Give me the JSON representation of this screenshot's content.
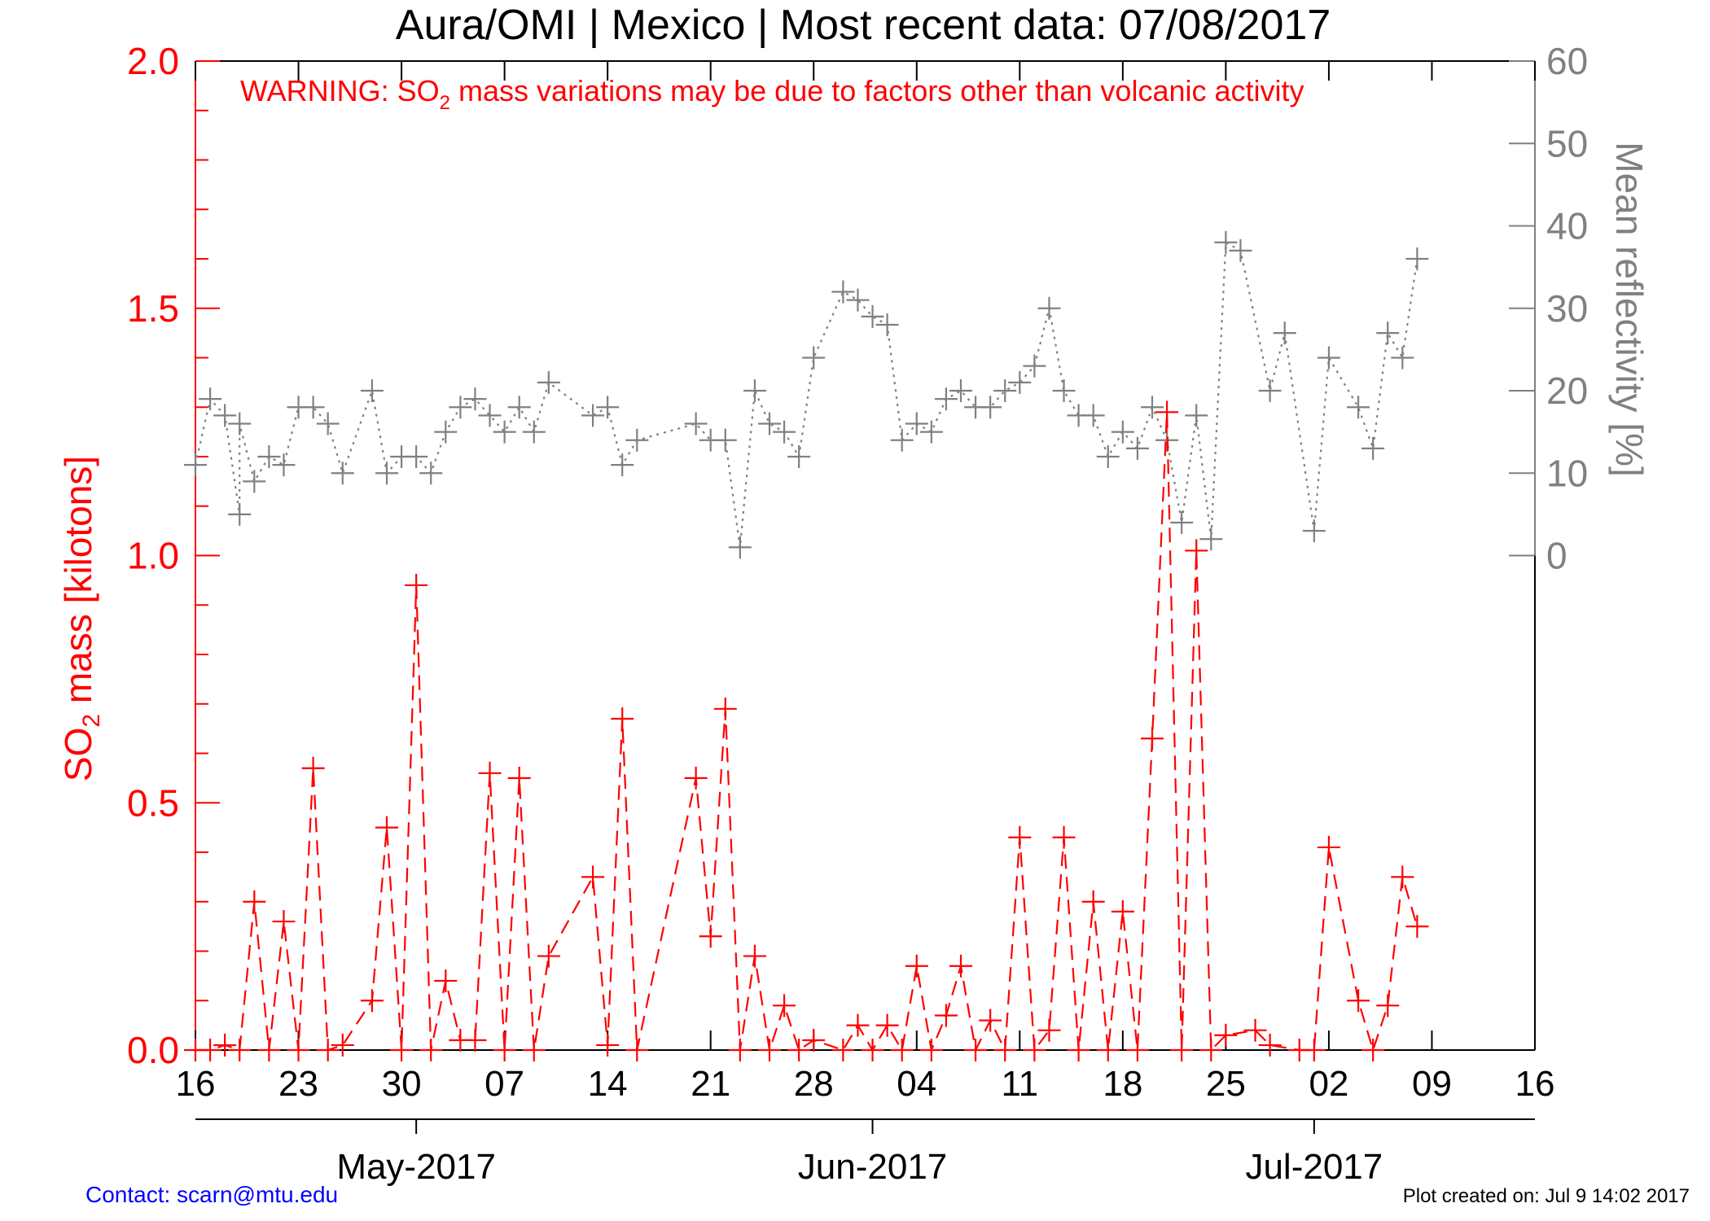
{
  "title": "Aura/OMI | Mexico | Most recent data: 07/08/2017",
  "warning": {
    "prefix": "WARNING: SO",
    "subscript": "2",
    "suffix": " mass variations may be due to factors other than volcanic activity"
  },
  "contact": "Contact: scarn@mtu.edu",
  "created": "Plot created on: Jul  9 14:02 2017",
  "colors": {
    "so2": "#ff0000",
    "reflectivity": "#808080",
    "contact": "#0000ff",
    "text": "#000000"
  },
  "chart_data": {
    "type": "line",
    "x_axis": {
      "type": "date",
      "range": [
        "2017-04-16",
        "2017-07-16"
      ],
      "day_ticks": [
        {
          "date": "2017-04-16",
          "label": "16"
        },
        {
          "date": "2017-04-23",
          "label": "23"
        },
        {
          "date": "2017-04-30",
          "label": "30"
        },
        {
          "date": "2017-05-07",
          "label": "07"
        },
        {
          "date": "2017-05-14",
          "label": "14"
        },
        {
          "date": "2017-05-21",
          "label": "21"
        },
        {
          "date": "2017-05-28",
          "label": "28"
        },
        {
          "date": "2017-06-04",
          "label": "04"
        },
        {
          "date": "2017-06-11",
          "label": "11"
        },
        {
          "date": "2017-06-18",
          "label": "18"
        },
        {
          "date": "2017-06-25",
          "label": "25"
        },
        {
          "date": "2017-07-02",
          "label": "02"
        },
        {
          "date": "2017-07-09",
          "label": "09"
        },
        {
          "date": "2017-07-16",
          "label": "16"
        }
      ],
      "month_ticks": [
        {
          "date": "2017-05-01",
          "label": "May-2017"
        },
        {
          "date": "2017-06-01",
          "label": "Jun-2017"
        },
        {
          "date": "2017-07-01",
          "label": "Jul-2017"
        }
      ]
    },
    "y_left": {
      "label_prefix": "SO",
      "label_subscript": "2",
      "label_suffix": " mass [kilotons]",
      "range": [
        0.0,
        2.0
      ],
      "ticks": [
        "0.0",
        "0.5",
        "1.0",
        "1.5",
        "2.0"
      ]
    },
    "y_right": {
      "label": "Mean reflectivity [%]",
      "range": [
        -60,
        60
      ],
      "ticks": [
        "0",
        "10",
        "20",
        "30",
        "40",
        "50",
        "60"
      ]
    },
    "series": [
      {
        "key": "so2",
        "axis": "left",
        "line": "dashed",
        "points": [
          [
            "2017-04-16",
            0.0
          ],
          [
            "2017-04-17",
            0.0
          ],
          [
            "2017-04-18",
            0.01
          ],
          [
            "2017-04-19",
            0.0
          ],
          [
            "2017-04-20",
            0.3
          ],
          [
            "2017-04-21",
            0.0
          ],
          [
            "2017-04-22",
            0.26
          ],
          [
            "2017-04-23",
            0.0
          ],
          [
            "2017-04-24",
            0.57
          ],
          [
            "2017-04-25",
            0.0
          ],
          [
            "2017-04-26",
            0.01
          ],
          [
            "2017-04-28",
            0.1
          ],
          [
            "2017-04-29",
            0.45
          ],
          [
            "2017-04-30",
            0.0
          ],
          [
            "2017-05-01",
            0.94
          ],
          [
            "2017-05-02",
            0.0
          ],
          [
            "2017-05-03",
            0.14
          ],
          [
            "2017-05-04",
            0.02
          ],
          [
            "2017-05-05",
            0.02
          ],
          [
            "2017-05-06",
            0.56
          ],
          [
            "2017-05-07",
            0.0
          ],
          [
            "2017-05-08",
            0.55
          ],
          [
            "2017-05-09",
            0.0
          ],
          [
            "2017-05-10",
            0.19
          ],
          [
            "2017-05-13",
            0.35
          ],
          [
            "2017-05-14",
            0.01
          ],
          [
            "2017-05-15",
            0.67
          ],
          [
            "2017-05-16",
            0.0
          ],
          [
            "2017-05-20",
            0.55
          ],
          [
            "2017-05-21",
            0.23
          ],
          [
            "2017-05-22",
            0.69
          ],
          [
            "2017-05-23",
            0.0
          ],
          [
            "2017-05-24",
            0.19
          ],
          [
            "2017-05-25",
            0.0
          ],
          [
            "2017-05-26",
            0.09
          ],
          [
            "2017-05-27",
            0.0
          ],
          [
            "2017-05-28",
            0.02
          ],
          [
            "2017-05-30",
            0.0
          ],
          [
            "2017-05-31",
            0.05
          ],
          [
            "2017-06-01",
            0.0
          ],
          [
            "2017-06-02",
            0.05
          ],
          [
            "2017-06-03",
            0.0
          ],
          [
            "2017-06-04",
            0.17
          ],
          [
            "2017-06-05",
            0.0
          ],
          [
            "2017-06-06",
            0.07
          ],
          [
            "2017-06-07",
            0.17
          ],
          [
            "2017-06-08",
            0.0
          ],
          [
            "2017-06-09",
            0.06
          ],
          [
            "2017-06-10",
            0.0
          ],
          [
            "2017-06-11",
            0.43
          ],
          [
            "2017-06-12",
            0.0
          ],
          [
            "2017-06-13",
            0.04
          ],
          [
            "2017-06-14",
            0.43
          ],
          [
            "2017-06-15",
            0.0
          ],
          [
            "2017-06-16",
            0.3
          ],
          [
            "2017-06-17",
            0.0
          ],
          [
            "2017-06-18",
            0.28
          ],
          [
            "2017-06-19",
            0.0
          ],
          [
            "2017-06-20",
            0.63
          ],
          [
            "2017-06-21",
            1.29
          ],
          [
            "2017-06-22",
            0.0
          ],
          [
            "2017-06-23",
            1.01
          ],
          [
            "2017-06-24",
            0.0
          ],
          [
            "2017-06-25",
            0.03
          ],
          [
            "2017-06-27",
            0.04
          ],
          [
            "2017-06-28",
            0.01
          ],
          [
            "2017-06-30",
            0.0
          ],
          [
            "2017-07-01",
            0.0
          ],
          [
            "2017-07-02",
            0.41
          ],
          [
            "2017-07-04",
            0.1
          ],
          [
            "2017-07-05",
            0.0
          ],
          [
            "2017-07-06",
            0.09
          ],
          [
            "2017-07-07",
            0.35
          ],
          [
            "2017-07-08",
            0.25
          ]
        ]
      },
      {
        "key": "reflectivity",
        "axis": "right",
        "line": "dotted",
        "points": [
          [
            "2017-04-16",
            11
          ],
          [
            "2017-04-17",
            19
          ],
          [
            "2017-04-18",
            17
          ],
          [
            "2017-04-19",
            5
          ],
          [
            "2017-04-19",
            16
          ],
          [
            "2017-04-20",
            9
          ],
          [
            "2017-04-21",
            12
          ],
          [
            "2017-04-22",
            11
          ],
          [
            "2017-04-23",
            18
          ],
          [
            "2017-04-24",
            18
          ],
          [
            "2017-04-25",
            16
          ],
          [
            "2017-04-26",
            10
          ],
          [
            "2017-04-28",
            20
          ],
          [
            "2017-04-29",
            10
          ],
          [
            "2017-04-30",
            12
          ],
          [
            "2017-05-01",
            12
          ],
          [
            "2017-05-02",
            10
          ],
          [
            "2017-05-03",
            15
          ],
          [
            "2017-05-04",
            18
          ],
          [
            "2017-05-05",
            19
          ],
          [
            "2017-05-06",
            17
          ],
          [
            "2017-05-07",
            15
          ],
          [
            "2017-05-08",
            18
          ],
          [
            "2017-05-09",
            15
          ],
          [
            "2017-05-10",
            21
          ],
          [
            "2017-05-13",
            17
          ],
          [
            "2017-05-14",
            18
          ],
          [
            "2017-05-15",
            11
          ],
          [
            "2017-05-16",
            14
          ],
          [
            "2017-05-20",
            16
          ],
          [
            "2017-05-21",
            14
          ],
          [
            "2017-05-22",
            14
          ],
          [
            "2017-05-23",
            1
          ],
          [
            "2017-05-24",
            20
          ],
          [
            "2017-05-25",
            16
          ],
          [
            "2017-05-26",
            15
          ],
          [
            "2017-05-27",
            12
          ],
          [
            "2017-05-28",
            24
          ],
          [
            "2017-05-30",
            32
          ],
          [
            "2017-05-31",
            31
          ],
          [
            "2017-06-01",
            29
          ],
          [
            "2017-06-02",
            28
          ],
          [
            "2017-06-03",
            14
          ],
          [
            "2017-06-04",
            16
          ],
          [
            "2017-06-05",
            15
          ],
          [
            "2017-06-06",
            19
          ],
          [
            "2017-06-07",
            20
          ],
          [
            "2017-06-08",
            18
          ],
          [
            "2017-06-09",
            18
          ],
          [
            "2017-06-10",
            20
          ],
          [
            "2017-06-11",
            21
          ],
          [
            "2017-06-12",
            23
          ],
          [
            "2017-06-13",
            30
          ],
          [
            "2017-06-14",
            20
          ],
          [
            "2017-06-15",
            17
          ],
          [
            "2017-06-16",
            17
          ],
          [
            "2017-06-17",
            12
          ],
          [
            "2017-06-18",
            15
          ],
          [
            "2017-06-19",
            13
          ],
          [
            "2017-06-20",
            18
          ],
          [
            "2017-06-21",
            14
          ],
          [
            "2017-06-22",
            4
          ],
          [
            "2017-06-23",
            17
          ],
          [
            "2017-06-24",
            2
          ],
          [
            "2017-06-25",
            38
          ],
          [
            "2017-06-26",
            37
          ],
          [
            "2017-06-28",
            20
          ],
          [
            "2017-06-29",
            27
          ],
          [
            "2017-07-01",
            3
          ],
          [
            "2017-07-02",
            24
          ],
          [
            "2017-07-04",
            18
          ],
          [
            "2017-07-05",
            13
          ],
          [
            "2017-07-06",
            27
          ],
          [
            "2017-07-07",
            24
          ],
          [
            "2017-07-08",
            36
          ]
        ]
      }
    ],
    "grid": false
  }
}
